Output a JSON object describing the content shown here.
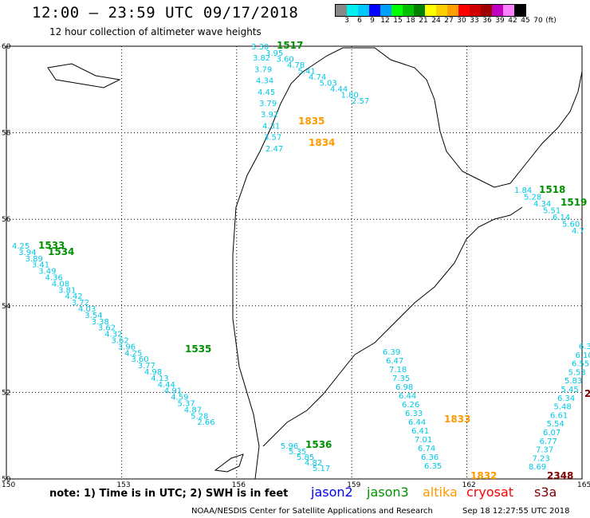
{
  "header": {
    "title": "12:00 — 23:59 UTC 09/17/2018",
    "subtitle": "12 hour collection of altimeter wave heights"
  },
  "colorbar": {
    "colors": [
      "#888888",
      "#00f0f0",
      "#00c8ff",
      "#0000ff",
      "#00a0ff",
      "#00ff00",
      "#00c000",
      "#008000",
      "#ffff00",
      "#ffd000",
      "#ffa000",
      "#ff0000",
      "#d00000",
      "#a00000",
      "#c000c0",
      "#ff80ff",
      "#000000"
    ],
    "labels": [
      "3",
      "6",
      "9",
      "12",
      "15",
      "18",
      "21",
      "24",
      "27",
      "30",
      "33",
      "36",
      "39",
      "42",
      "45",
      "70",
      "(ft)"
    ]
  },
  "axes": {
    "lat_labels": [
      "60",
      "58",
      "56",
      "54",
      "52",
      "50"
    ],
    "lon_labels": [
      "150",
      "153",
      "156",
      "159",
      "162",
      "165"
    ]
  },
  "footer": {
    "note": "note: 1) Time is in UTC; 2) SWH is in feet",
    "credit": "NOAA/NESDIS Center for Satellite Applications and Research",
    "timestamp": "Sep 18 12:27:55 UTC 2018"
  },
  "legend": [
    {
      "name": "jason2",
      "color": "#0000ff"
    },
    {
      "name": "jason3",
      "color": "#009000"
    },
    {
      "name": "altika",
      "color": "#ff9900"
    },
    {
      "name": "cryosat",
      "color": "#ff0000"
    },
    {
      "name": "s3a",
      "color": "#800000"
    }
  ],
  "tracks": [
    {
      "label": "1517",
      "label_color": "#009000",
      "values": [
        "3.30",
        "3.82",
        "3.79",
        "4.34",
        "4.45",
        "3.79",
        "3.92",
        "4.31",
        "3.57",
        "2.47"
      ],
      "value_colors": "#00c8e6"
    },
    {
      "label": "",
      "values": [
        "3.95",
        "3.60",
        "4.78",
        "5.41",
        "4.74",
        "5.03",
        "4.44",
        "1.80",
        "2.57"
      ],
      "value_colors": "#00c8e6"
    },
    {
      "label": "1835",
      "label_color": "#ff9900"
    },
    {
      "label": "1834",
      "label_color": "#ff9900"
    },
    {
      "label": "1518",
      "label_color": "#009000",
      "values": [
        "1.84",
        "5.28",
        "4.34",
        "5.51",
        "6.14",
        "5.60",
        "4.7"
      ]
    },
    {
      "label": "1519",
      "label_color": "#009000"
    },
    {
      "label": "1533",
      "label_color": "#009000"
    },
    {
      "label": "1534",
      "label_color": "#009000",
      "values": [
        "4.25",
        "3.94",
        "3.89",
        "3.41",
        "3.49",
        "4.36",
        "4.08",
        "3.81",
        "4.42",
        "3.72",
        "4.03",
        "3.54",
        "3.38",
        "3.62",
        "4.32",
        "3.62",
        "3.96",
        "4.25",
        "3.60",
        "3.77",
        "4.98",
        "4.13",
        "4.44",
        "4.91",
        "4.59",
        "5.37",
        "4.87",
        "5.28",
        "2.66"
      ]
    },
    {
      "label": "1535",
      "label_color": "#009000"
    },
    {
      "label": "1536",
      "label_color": "#009000",
      "values": [
        "5.96",
        "5.35",
        "5.85",
        "4.82",
        "5.17"
      ]
    },
    {
      "label": "1833",
      "label_color": "#ff9900",
      "values": [
        "6.39",
        "6.47",
        "7.18",
        "7.35",
        "6.98",
        "6.44",
        "6.26",
        "6.33",
        "6.44",
        "6.41",
        "7.01",
        "6.74",
        "6.36",
        "6.35"
      ]
    },
    {
      "label": "1832",
      "label_color": "#ff9900"
    },
    {
      "label": "2348",
      "label_color": "#800000",
      "values": [
        "6.3",
        "6.10",
        "6.55",
        "5.53",
        "5.83",
        "5.45",
        "6.34",
        "5.48",
        "6.61",
        "5.54",
        "6.07",
        "6.77",
        "7.37",
        "7.23",
        "8.69"
      ]
    },
    {
      "label": "2",
      "label_color": "#800000"
    }
  ]
}
